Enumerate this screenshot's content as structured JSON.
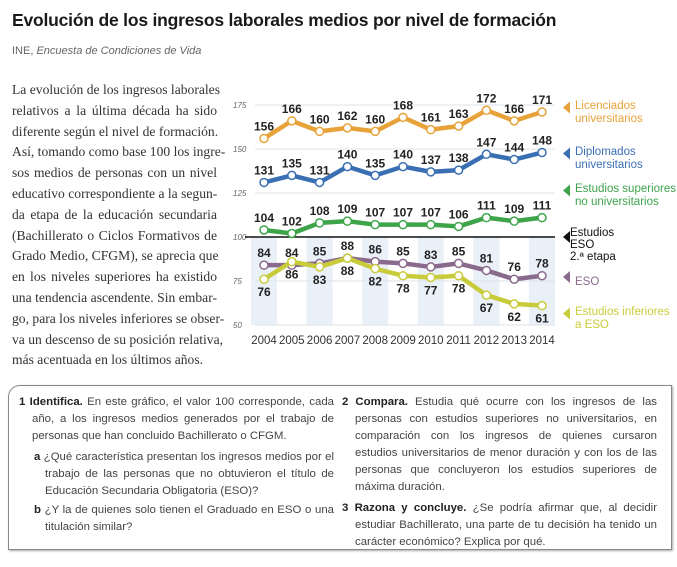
{
  "title": "Evolución de los ingresos laborales medios por nivel de formación",
  "source": {
    "org": "INE, ",
    "work": "Encuesta de Condiciones de Vida"
  },
  "paragraph_lines": [
    "La evolución de los ingresos laborales",
    "relativos a la última década ha sido",
    "diferente según el nivel de formación.",
    "Así, tomando como base 100 los ingre-",
    "sos medios de personas con un nivel",
    "educativo correspondiente a la segun-",
    "da etapa de la educación secundaria",
    "(Bachillerato o Ciclos Formativos de",
    "Grado Medio, CFGM), se aprecia que",
    "en los niveles superiores ha existido",
    "una tendencia ascendente. Sin embar-",
    "go, para los niveles inferiores se obser-",
    "va un descenso de su posición relativa,",
    "más acentuada en los últimos años."
  ],
  "chart_data": {
    "type": "line",
    "x": [
      2004,
      2005,
      2006,
      2007,
      2008,
      2009,
      2010,
      2011,
      2012,
      2013,
      2014
    ],
    "ylim": [
      50,
      175
    ],
    "yticks": [
      50,
      75,
      100,
      125,
      150,
      175
    ],
    "baseline": {
      "value": 100,
      "name": "Estudios ESO 2.ª etapa",
      "lines": [
        "Estudios",
        "ESO",
        "2.ª etapa"
      ],
      "color": "#111111"
    },
    "grid": true,
    "legend": "right",
    "series": [
      {
        "name": "Licenciados universitarios",
        "lines": [
          "Licenciados",
          "universitarios"
        ],
        "color": "#e8a23a",
        "label_pos": "above",
        "values": [
          156,
          166,
          160,
          162,
          160,
          168,
          161,
          163,
          172,
          166,
          171
        ]
      },
      {
        "name": "Diplomados universitarios",
        "lines": [
          "Diplomados",
          "universitarios"
        ],
        "color": "#3a6fb4",
        "label_pos": "above",
        "values": [
          131,
          135,
          131,
          140,
          135,
          140,
          137,
          138,
          147,
          144,
          148
        ]
      },
      {
        "name": "Estudios superiores no universitarios",
        "lines": [
          "Estudios superiores",
          "no universitarios"
        ],
        "color": "#3da44a",
        "label_pos": "above",
        "values": [
          104,
          102,
          108,
          109,
          107,
          107,
          107,
          106,
          111,
          109,
          111
        ]
      },
      {
        "name": "ESO",
        "lines": [
          "ESO"
        ],
        "color": "#8a6a8c",
        "label_pos": "above",
        "values": [
          84,
          84,
          85,
          88,
          86,
          85,
          83,
          85,
          81,
          76,
          78
        ]
      },
      {
        "name": "Estudios inferiores a ESO",
        "lines": [
          "Estudios inferiores",
          "a ESO"
        ],
        "color": "#c9cc3a",
        "label_pos": "below",
        "values": [
          76,
          86,
          83,
          88,
          82,
          78,
          77,
          78,
          67,
          62,
          61
        ]
      }
    ]
  },
  "exercises": {
    "ex1": {
      "num": "1",
      "head": "Identifica.",
      "text": " En este gráfico, el valor 100 corresponde, cada año, a los ingresos medios generados por el trabajo de personas que han concluido Bachillerato o CFGM.",
      "a": {
        "letter": "a",
        "text": " ¿Qué característica presentan los ingresos medios por el trabajo de las personas que no obtuvieron el título de Educación Secundaria Obligatoria (ESO)?"
      },
      "b": {
        "letter": "b",
        "text": " ¿Y la de quienes solo tienen el Graduado en ESO o una titulación similar?"
      }
    },
    "ex2": {
      "num": "2",
      "head": "Compara.",
      "text": " Estudia qué ocurre con los ingresos de las personas con estudios superiores no universitarios, en comparación con los ingresos de quienes cursaron estudios universitarios de menor duración y con los de las personas que concluyeron los estudios superiores de máxima duración."
    },
    "ex3": {
      "num": "3",
      "head": "Razona y concluye.",
      "text": " ¿Se podría afirmar que, al decidir estudiar Bachillerato, una parte de tu decisión ha tenido un carácter económico? Explica por qué."
    }
  }
}
